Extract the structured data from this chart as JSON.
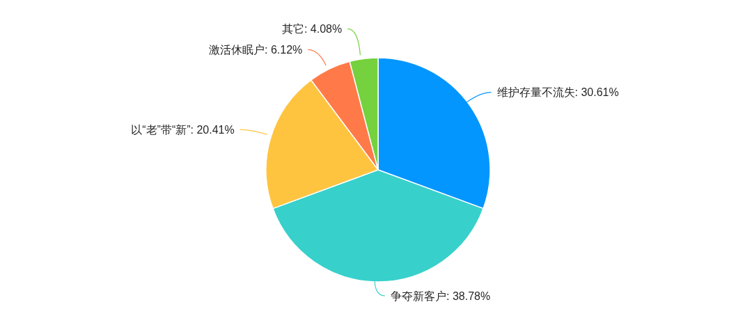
{
  "chart_data": {
    "type": "pie",
    "categories": [
      "维护存量不流失",
      "争夺新客户",
      "以“老”带“新”",
      "激活休眠户",
      "其它"
    ],
    "values": [
      30.61,
      38.78,
      20.41,
      6.12,
      4.08
    ],
    "colors": [
      "#0396ff",
      "#38d0cb",
      "#ffc43f",
      "#ff7a48",
      "#75d13d"
    ],
    "value_labels": [
      "30.61%",
      "38.78%",
      "20.41%",
      "6.12%",
      "4.08%"
    ]
  }
}
